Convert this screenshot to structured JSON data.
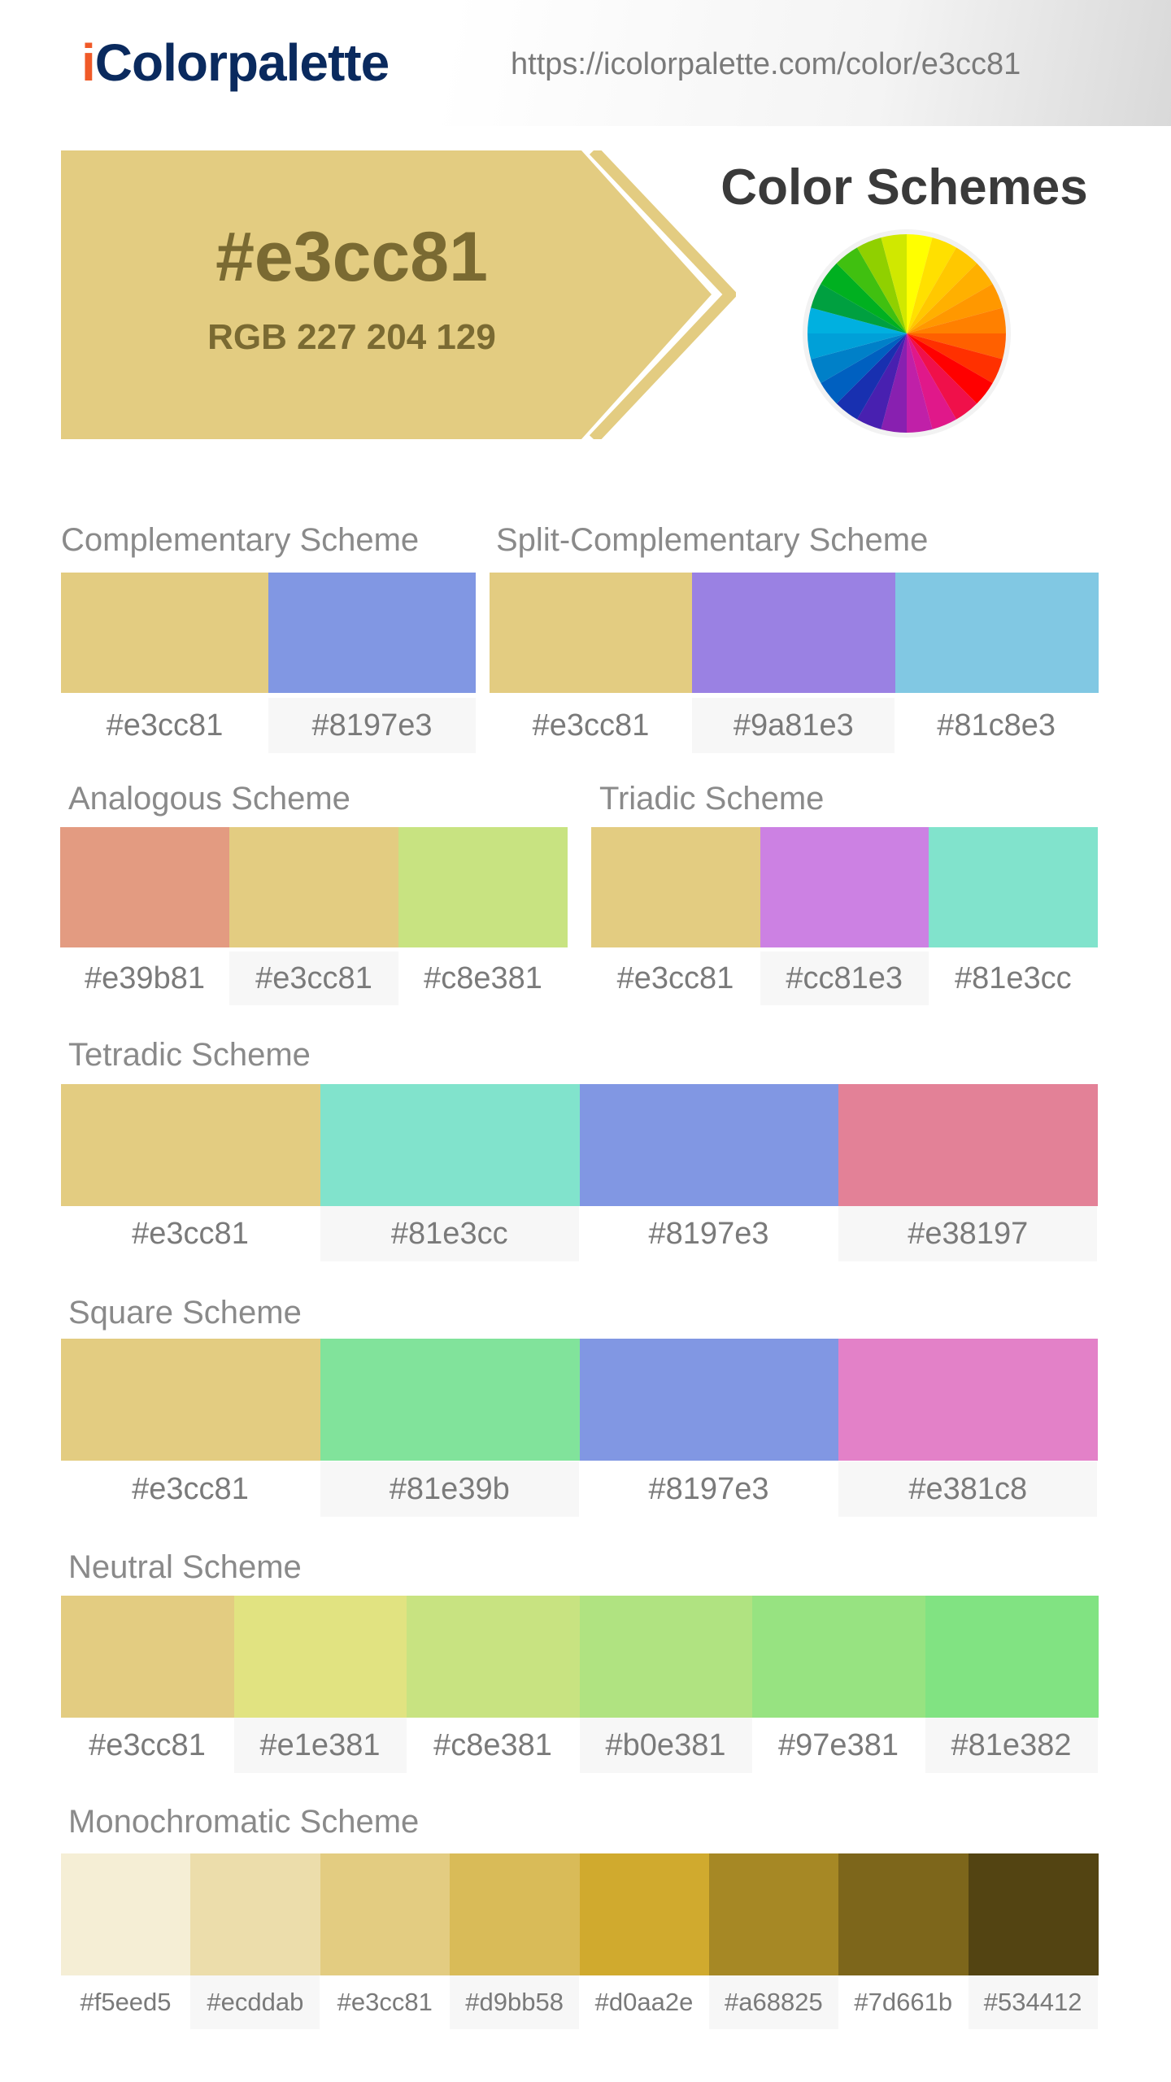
{
  "site": {
    "logo_i": "i",
    "logo_rest": "Colorpalette",
    "url": "https://icolorpalette.com/color/e3cc81"
  },
  "hero": {
    "hex": "#e3cc81",
    "rgb": "RGB 227 204 129",
    "color": "#e3cc81",
    "text_color": "#7a6a32"
  },
  "schemes_title": "Color Schemes",
  "wheel_colors": [
    "#ffff00",
    "#ffe000",
    "#ffc800",
    "#ffb000",
    "#ff9800",
    "#ff8000",
    "#ff6000",
    "#ff3000",
    "#ff0000",
    "#f0104a",
    "#e0188a",
    "#c020a8",
    "#8820b0",
    "#4820b0",
    "#1830b0",
    "#0060c0",
    "#0080c8",
    "#00a0d8",
    "#00b0e0",
    "#00a040",
    "#00b020",
    "#40c010",
    "#90d000",
    "#d0e800"
  ],
  "schemes": {
    "complementary": {
      "title": "Complementary Scheme",
      "colors": [
        "#e3cc81",
        "#8197e3"
      ]
    },
    "split": {
      "title": "Split-Complementary Scheme",
      "colors": [
        "#e3cc81",
        "#9a81e3",
        "#81c8e3"
      ]
    },
    "analogous": {
      "title": "Analogous Scheme",
      "colors": [
        "#e39b81",
        "#e3cc81",
        "#c8e381"
      ]
    },
    "triadic": {
      "title": "Triadic Scheme",
      "colors": [
        "#e3cc81",
        "#cc81e3",
        "#81e3cc"
      ]
    },
    "tetradic": {
      "title": "Tetradic Scheme",
      "colors": [
        "#e3cc81",
        "#81e3cc",
        "#8197e3",
        "#e38197"
      ]
    },
    "square": {
      "title": "Square Scheme",
      "colors": [
        "#e3cc81",
        "#81e39b",
        "#8197e3",
        "#e381c8"
      ]
    },
    "neutral": {
      "title": "Neutral Scheme",
      "colors": [
        "#e3cc81",
        "#e1e381",
        "#c8e381",
        "#b0e381",
        "#97e381",
        "#81e382"
      ]
    },
    "monochromatic": {
      "title": "Monochromatic Scheme",
      "colors": [
        "#f5eed5",
        "#ecddab",
        "#e3cc81",
        "#d9bb58",
        "#d0aa2e",
        "#a68825",
        "#7d661b",
        "#534412"
      ]
    }
  }
}
